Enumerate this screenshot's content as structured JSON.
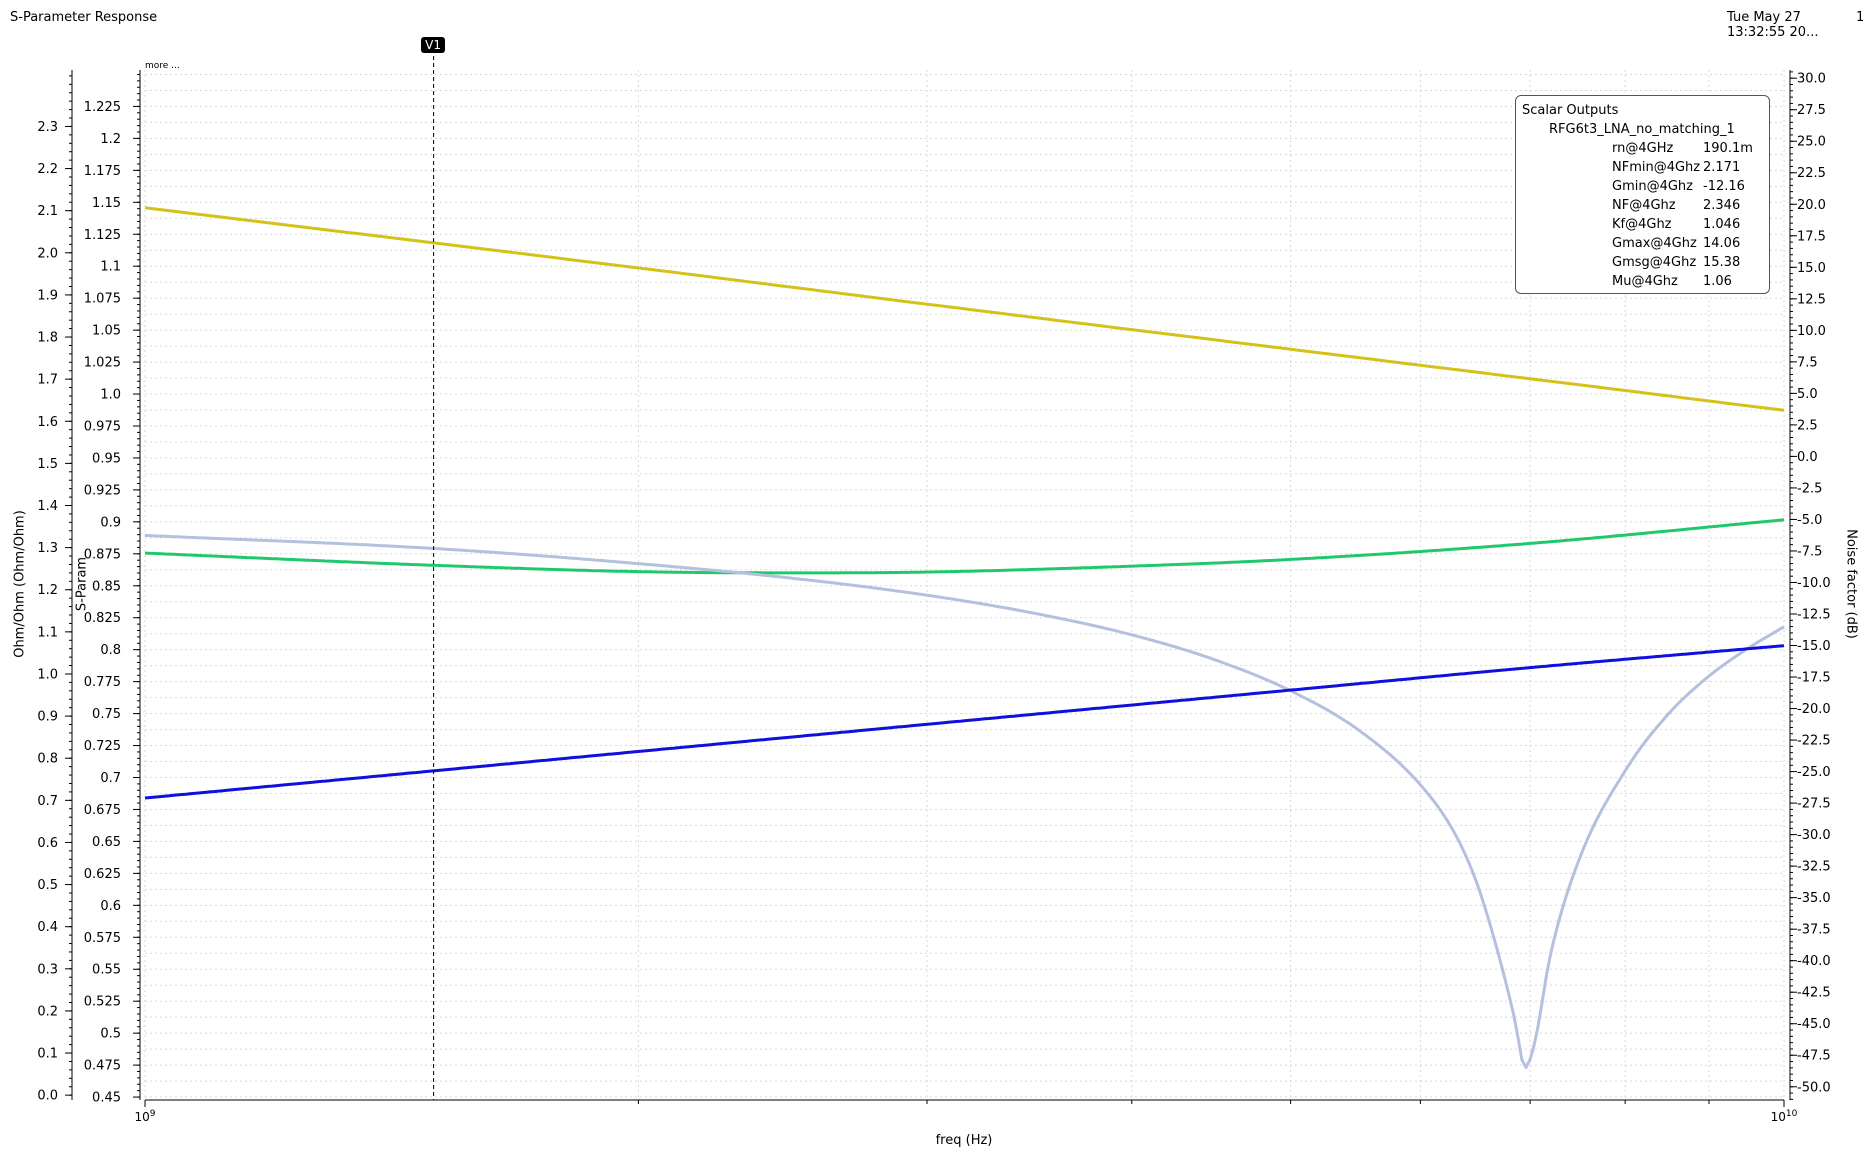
{
  "header": {
    "title": "S-Parameter Response",
    "date": "Tue May 27",
    "time": "13:32:55 20...",
    "page": "1"
  },
  "marker": {
    "label": "V1",
    "freq_hz": 1500000000
  },
  "more_label": "more ...",
  "scalar_outputs": {
    "title": "Scalar Outputs",
    "dataset": "RFG6t3_LNA_no_matching_1",
    "rows": [
      {
        "name": "rn@4GHz",
        "value": "190.1m"
      },
      {
        "name": "NFmin@4Ghz",
        "value": "2.171"
      },
      {
        "name": "Gmin@4Ghz",
        "value": "-12.16"
      },
      {
        "name": "NF@4Ghz",
        "value": "2.346"
      },
      {
        "name": "Kf@4Ghz",
        "value": "1.046"
      },
      {
        "name": "Gmax@4Ghz",
        "value": "14.06"
      },
      {
        "name": "Gmsg@4Ghz",
        "value": "15.38"
      },
      {
        "name": "Mu@4Ghz",
        "value": "1.06"
      }
    ]
  },
  "colors": {
    "yellow": "#d4c21a",
    "green": "#1ec86b",
    "lightblue": "#b4c0de",
    "blue": "#1010dc",
    "grid": "#d8d8d8",
    "marker": "#000000"
  },
  "chart_data": {
    "type": "line",
    "xlabel": "freq (Hz)",
    "x_scale": "log",
    "xlim": [
      1000000000,
      10000000000
    ],
    "x_tick_labels": [
      {
        "base": "10",
        "exp": "9"
      },
      {
        "base": "10",
        "exp": "10"
      }
    ],
    "grid": true,
    "axes": {
      "left": {
        "label": "Ohm/Ohm (Ohm/Ohm)",
        "range": [
          -0.0115,
          2.434
        ],
        "ticks": [
          "0.0",
          "0.1",
          "0.2",
          "0.3",
          "0.4",
          "0.5",
          "0.6",
          "0.7",
          "0.8",
          "0.9",
          "1.0",
          "1.1",
          "1.2",
          "1.3",
          "1.4",
          "1.5",
          "1.6",
          "1.7",
          "1.8",
          "1.9",
          "2.0",
          "2.1",
          "2.2",
          "2.3"
        ]
      },
      "sparam": {
        "label": "S-Param",
        "range": [
          0.4477,
          1.2535
        ],
        "ticks": [
          "0.45",
          "0.475",
          "0.5",
          "0.525",
          "0.55",
          "0.575",
          "0.6",
          "0.625",
          "0.65",
          "0.675",
          "0.7",
          "0.725",
          "0.75",
          "0.775",
          "0.8",
          "0.825",
          "0.85",
          "0.875",
          "0.9",
          "0.925",
          "0.95",
          "0.975",
          "1.0",
          "1.025",
          "1.05",
          "1.075",
          "1.1",
          "1.125",
          "1.15",
          "1.175",
          "1.2",
          "1.225"
        ]
      },
      "right": {
        "label": "Noise factor (dB)",
        "range": [
          -51.05,
          30.65
        ],
        "ticks": [
          "-50.0",
          "-47.5",
          "-45.0",
          "-42.5",
          "-40.0",
          "-37.5",
          "-35.0",
          "-32.5",
          "-30.0",
          "-27.5",
          "-25.0",
          "-22.5",
          "-20.0",
          "-17.5",
          "-15.0",
          "-12.5",
          "-10.0",
          "-7.5",
          "-5.0",
          "-2.5",
          "0.0",
          "2.5",
          "5.0",
          "7.5",
          "10.0",
          "12.5",
          "15.0",
          "17.5",
          "20.0",
          "22.5",
          "25.0",
          "27.5",
          "30.0"
        ]
      }
    },
    "series": [
      {
        "color": "yellow",
        "axis": "left",
        "x": [
          1000000000.0,
          2000000000.0,
          3000000000.0,
          5000000000.0,
          7000000000.0,
          10000000000.0
        ],
        "y": [
          2.107,
          1.964,
          1.878,
          1.771,
          1.701,
          1.626
        ]
      },
      {
        "color": "green",
        "axis": "left",
        "x": [
          1000000000.0,
          1500000000.0,
          2000000000.0,
          2500000000.0,
          3000000000.0,
          4000000000.0,
          5000000000.0,
          7000000000.0,
          10000000000.0
        ],
        "y": [
          1.287,
          1.258,
          1.243,
          1.24,
          1.242,
          1.256,
          1.272,
          1.31,
          1.366
        ]
      },
      {
        "color": "lightblue",
        "axis": "left",
        "x": [
          1000000000.0,
          1500000000.0,
          2000000000.0,
          2500000000.0,
          3000000000.0,
          3500000000.0,
          4000000000.0,
          4500000000.0,
          5000000000.0,
          5500000000.0,
          6000000000.0,
          6300000000.0,
          6500000000.0,
          6700000000.0,
          6850000000.0,
          6950000000.0,
          7050000000.0,
          7200000000.0,
          7500000000.0,
          8000000000.0,
          8500000000.0,
          9000000000.0,
          9500000000.0,
          10000000000.0
        ],
        "y": [
          1.329,
          1.298,
          1.262,
          1.226,
          1.187,
          1.143,
          1.093,
          1.033,
          0.96,
          0.867,
          0.737,
          0.62,
          0.5,
          0.33,
          0.18,
          0.065,
          0.13,
          0.33,
          0.56,
          0.77,
          0.905,
          0.995,
          1.06,
          1.112
        ]
      },
      {
        "color": "blue",
        "axis": "left",
        "x": [
          1000000000.0,
          1500000000.0,
          2000000000.0,
          3000000000.0,
          5000000000.0,
          7000000000.0,
          10000000000.0
        ],
        "y": [
          0.7055,
          0.77,
          0.816,
          0.8805,
          0.9617,
          1.0151,
          1.0672
        ]
      }
    ]
  }
}
